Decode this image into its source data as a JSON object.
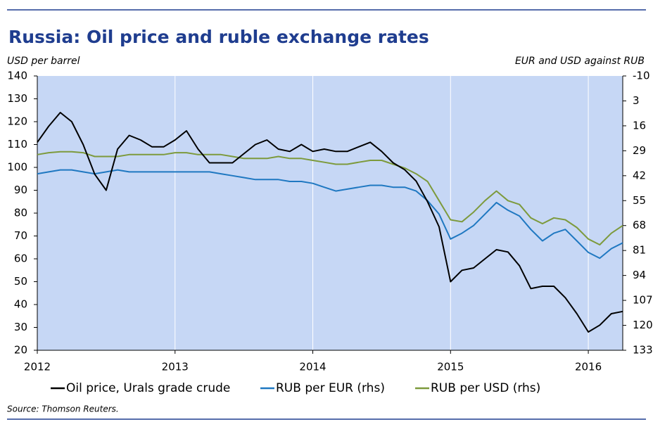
{
  "chart_data": {
    "type": "line",
    "title": "Russia: Oil price and ruble exchange rates",
    "y_label": "USD per barrel",
    "y2_label": "EUR and USD against RUB",
    "source": "Source: Thomson Reuters.",
    "x": [
      2012,
      2012.083,
      2012.167,
      2012.25,
      2012.333,
      2012.417,
      2012.5,
      2012.583,
      2012.667,
      2012.75,
      2012.833,
      2012.917,
      2013,
      2013.083,
      2013.167,
      2013.25,
      2013.333,
      2013.417,
      2013.5,
      2013.583,
      2013.667,
      2013.75,
      2013.833,
      2013.917,
      2014,
      2014.083,
      2014.167,
      2014.25,
      2014.333,
      2014.417,
      2014.5,
      2014.583,
      2014.667,
      2014.75,
      2014.833,
      2014.917,
      2015,
      2015.083,
      2015.167,
      2015.25,
      2015.333,
      2015.417,
      2015.5,
      2015.583,
      2015.667,
      2015.75,
      2015.833,
      2015.917,
      2016,
      2016.083,
      2016.167,
      2016.25
    ],
    "xlim": [
      2012,
      2016.25
    ],
    "xticks": [
      2012,
      2013,
      2014,
      2015,
      2016
    ],
    "ylim": [
      20,
      140
    ],
    "yticks": [
      20,
      30,
      40,
      50,
      60,
      70,
      80,
      90,
      100,
      110,
      120,
      130,
      140
    ],
    "y2lim": [
      133,
      -10
    ],
    "y2ticks": [
      -10,
      3,
      16,
      29,
      42,
      55,
      68,
      81,
      94,
      107,
      120,
      133
    ],
    "xgrid": true,
    "plot_background": "#c6d7f5",
    "legend": "bottom",
    "series": [
      {
        "name": "Oil price, Urals grade crude",
        "color": "#000000",
        "values": [
          111,
          118,
          124,
          120,
          110,
          97,
          90,
          108,
          114,
          112,
          109,
          109,
          112,
          116,
          108,
          102,
          102,
          102,
          106,
          110,
          112,
          108,
          107,
          110,
          107,
          108,
          107,
          107,
          109,
          111,
          107,
          102,
          99,
          94,
          85,
          74,
          50,
          55,
          56,
          60,
          64,
          63,
          57,
          47,
          48,
          48,
          43,
          36,
          28,
          31,
          36,
          37
        ]
      },
      {
        "name": "RUB per EUR (rhs)",
        "color": "#1f78c1",
        "axis": "y2",
        "values": [
          41,
          40,
          39,
          39,
          40,
          41,
          40,
          39,
          40,
          40,
          40,
          40,
          40,
          40,
          40,
          40,
          41,
          42,
          43,
          44,
          44,
          44,
          45,
          45,
          46,
          48,
          50,
          49,
          48,
          47,
          47,
          48,
          48,
          50,
          55,
          62,
          75,
          72,
          68,
          62,
          56,
          60,
          63,
          70,
          76,
          72,
          70,
          76,
          82,
          85,
          80,
          77
        ]
      },
      {
        "name": "RUB per USD (rhs)",
        "color": "#7d9a3c",
        "axis": "y2",
        "values": [
          31,
          30,
          29.5,
          29.5,
          30,
          32,
          32,
          32,
          31,
          31,
          31,
          31,
          30,
          30,
          31,
          31,
          31,
          32,
          33,
          33,
          33,
          32,
          33,
          33,
          34,
          35,
          36,
          36,
          35,
          34,
          34,
          36,
          38,
          41,
          45,
          55,
          65,
          66,
          61,
          55,
          50,
          55,
          57,
          64,
          67,
          64,
          65,
          69,
          75,
          78,
          72,
          68
        ]
      }
    ]
  }
}
